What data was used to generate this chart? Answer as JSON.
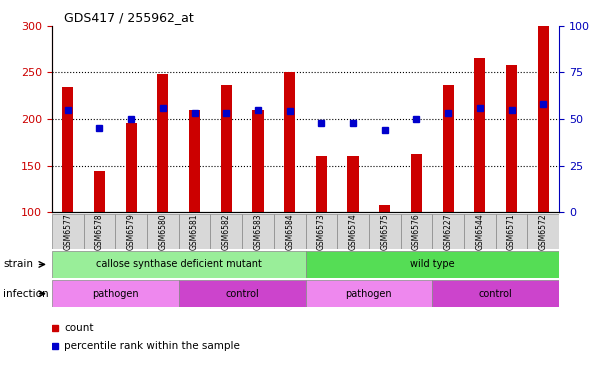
{
  "title": "GDS417 / 255962_at",
  "samples": [
    "GSM6577",
    "GSM6578",
    "GSM6579",
    "GSM6580",
    "GSM6581",
    "GSM6582",
    "GSM6583",
    "GSM6584",
    "GSM6573",
    "GSM6574",
    "GSM6575",
    "GSM6576",
    "GSM6227",
    "GSM6544",
    "GSM6571",
    "GSM6572"
  ],
  "counts": [
    234,
    144,
    196,
    248,
    210,
    236,
    210,
    250,
    160,
    160,
    108,
    162,
    236,
    265,
    258,
    300
  ],
  "percentile_ranks": [
    55,
    45,
    50,
    56,
    53,
    53,
    55,
    54,
    48,
    48,
    44,
    50,
    53,
    56,
    55,
    58
  ],
  "ylim_left": [
    100,
    300
  ],
  "ylim_right": [
    0,
    100
  ],
  "yticks_left": [
    100,
    150,
    200,
    250,
    300
  ],
  "yticks_right": [
    0,
    25,
    50,
    75,
    100
  ],
  "bar_color": "#cc0000",
  "dot_color": "#0000cc",
  "background_color": "#ffffff",
  "strain_groups": [
    {
      "label": "callose synthase deficient mutant",
      "start": 0,
      "end": 8,
      "color": "#99ee99"
    },
    {
      "label": "wild type",
      "start": 8,
      "end": 16,
      "color": "#55dd55"
    }
  ],
  "infection_groups": [
    {
      "label": "pathogen",
      "start": 0,
      "end": 4,
      "color": "#ee88ee"
    },
    {
      "label": "control",
      "start": 4,
      "end": 8,
      "color": "#cc44cc"
    },
    {
      "label": "pathogen",
      "start": 8,
      "end": 12,
      "color": "#ee88ee"
    },
    {
      "label": "control",
      "start": 12,
      "end": 16,
      "color": "#cc44cc"
    }
  ],
  "legend_items": [
    {
      "label": "count",
      "color": "#cc0000"
    },
    {
      "label": "percentile rank within the sample",
      "color": "#0000cc"
    }
  ],
  "tick_color_left": "#cc0000",
  "tick_color_right": "#0000bb",
  "bar_width": 0.35,
  "dot_size": 5
}
